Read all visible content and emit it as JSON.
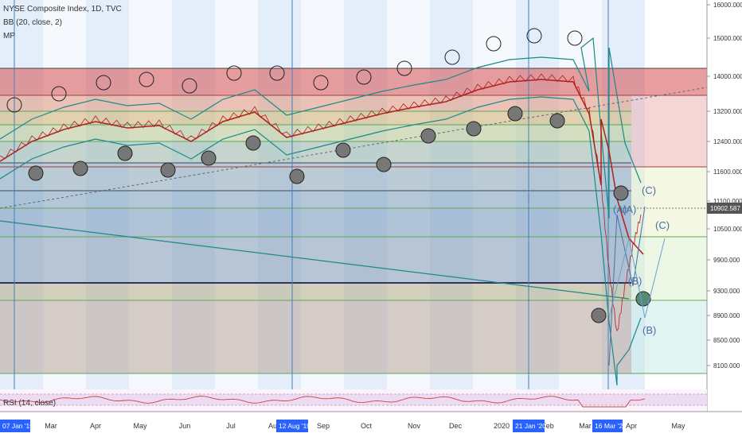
{
  "header": {
    "symbol_line": "NYSE Composite Index, 1D, TVC",
    "indicator_bb": "BB (20, close, 2)",
    "indicator_mp": "MP",
    "rsi_label": "RSI (14, close)"
  },
  "price_readout": "10902.587",
  "colors": {
    "price_line": "#b02020",
    "bollinger": "#1a8a8a",
    "midband": "#b02020",
    "rsi": "#d04040",
    "readout_bg": "#555555",
    "date_badge_bg": "#2962ff",
    "wave_text": "#4a6fa5"
  },
  "chart_data": {
    "type": "line",
    "title": "NYSE Composite Index, 1D, TVC",
    "y_ticks": [
      "16000.000",
      "15000.000",
      "14000.000",
      "13200.000",
      "12400.000",
      "11600.000",
      "11100.000",
      "10500.000",
      "9900.000",
      "9300.000",
      "8900.000",
      "8500.000",
      "8100.000"
    ],
    "x_ticks": [
      "Mar",
      "Apr",
      "May",
      "Jun",
      "Jul",
      "Aug",
      "Sep",
      "Oct",
      "Nov",
      "Dec",
      "2020",
      "Feb",
      "Mar",
      "Apr",
      "May"
    ],
    "date_badges": [
      "07 Jan '19",
      "12 Aug '19",
      "21 Jan '20",
      "16 Mar '20"
    ],
    "series": [
      {
        "name": "BB (20, close, 2)",
        "kind": "bollinger"
      },
      {
        "name": "RSI (14, close)",
        "kind": "oscillator"
      }
    ],
    "price_path": [
      [
        "07 Jan '19",
        12300
      ],
      [
        "Mar",
        12700
      ],
      [
        "Apr",
        12900
      ],
      [
        "May",
        12850
      ],
      [
        "Jun",
        12600
      ],
      [
        "Jul",
        13000
      ],
      [
        "Aug",
        12800
      ],
      [
        "12 Aug '19",
        12700
      ],
      [
        "Sep",
        12900
      ],
      [
        "Oct",
        12800
      ],
      [
        "Nov",
        13200
      ],
      [
        "Dec",
        13450
      ],
      [
        "2020",
        13700
      ],
      [
        "21 Jan '20",
        13900
      ],
      [
        "Feb",
        13800
      ],
      [
        "Mar",
        12000
      ],
      [
        "16 Mar '20",
        9000
      ],
      [
        "Apr",
        10902.587
      ]
    ],
    "wave_labels": [
      "(A)",
      "(A)",
      "(B)",
      "(C)",
      "(C)",
      "(B)"
    ],
    "annotations": {
      "price_readout": "10902.587"
    }
  }
}
